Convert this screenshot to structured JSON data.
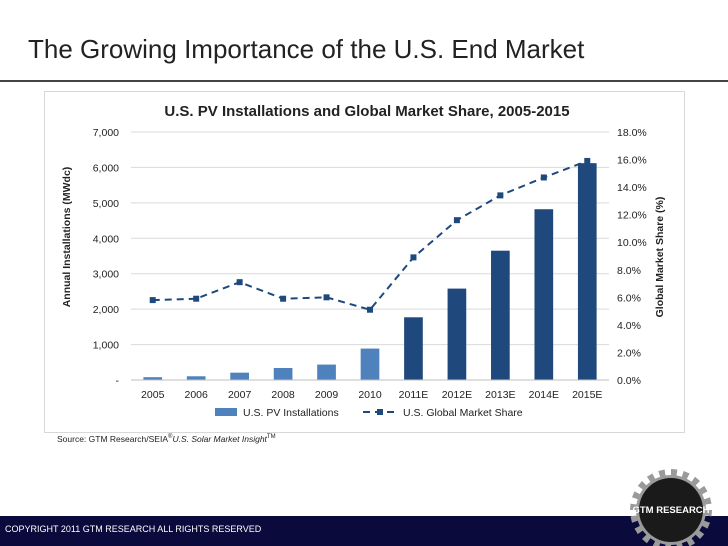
{
  "slide": {
    "title": "The Growing Importance of the U.S. End Market",
    "source_prefix": "Source: GTM Research/SEIA",
    "source_reg": "®",
    "source_italic": "U.S. Solar Market Insight",
    "source_tm": "TM",
    "footer": "COPYRIGHT 2011 GTM RESEARCH ALL RIGHTS RESERVED",
    "logo_text": "GTM RESEARCH"
  },
  "colors": {
    "actual_bar": "#4f81bd",
    "estimate_bar": "#1f497d",
    "line": "#1f497d",
    "footer": "#0a0a3c"
  },
  "chart_data": {
    "type": "bar",
    "title": "U.S. PV Installations and Global Market Share, 2005-2015",
    "categories": [
      "2005",
      "2006",
      "2007",
      "2008",
      "2009",
      "2010",
      "2011E",
      "2012E",
      "2013E",
      "2014E",
      "2015E"
    ],
    "series": [
      {
        "name": "U.S. PV Installations",
        "type": "bar",
        "axis": "left",
        "values": [
          79,
          105,
          207,
          339,
          435,
          887,
          1770,
          2580,
          3650,
          4820,
          6120
        ]
      },
      {
        "name": "U.S. Global Market Share",
        "type": "line",
        "style": "dashed",
        "axis": "right",
        "values": [
          5.8,
          5.9,
          7.1,
          5.9,
          6.0,
          5.1,
          8.9,
          11.6,
          13.4,
          14.7,
          15.9
        ]
      }
    ],
    "ylabel": "Annual Installations (MWdc)",
    "y2label": "Global Market Share (%)",
    "ylim": [
      0,
      7000
    ],
    "y2lim": [
      0,
      18
    ],
    "yticks": [
      "-",
      "1,000",
      "2,000",
      "3,000",
      "4,000",
      "5,000",
      "6,000",
      "7,000"
    ],
    "y2ticks": [
      "0.0%",
      "2.0%",
      "4.0%",
      "6.0%",
      "8.0%",
      "10.0%",
      "12.0%",
      "14.0%",
      "16.0%",
      "18.0%"
    ],
    "estimate_from_index": 6,
    "grid": true,
    "legend": "bottom"
  }
}
